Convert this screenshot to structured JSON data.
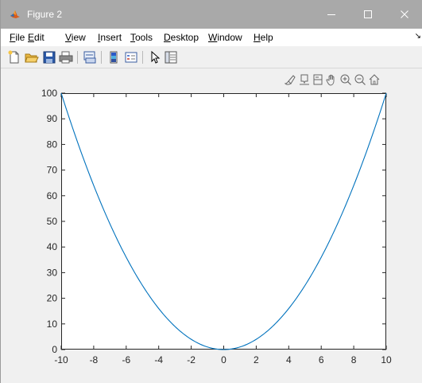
{
  "window": {
    "title": "Figure 2",
    "controls": {
      "minimize": "minimize-icon",
      "maximize": "maximize-icon",
      "close": "close-icon"
    }
  },
  "menu": {
    "items": [
      {
        "label": "File",
        "key": "F",
        "rest": "ile"
      },
      {
        "label": "Edit",
        "key": "E",
        "rest": "dit"
      },
      {
        "label": "View",
        "key": "V",
        "rest": "iew"
      },
      {
        "label": "Insert",
        "key": "I",
        "rest": "nsert"
      },
      {
        "label": "Tools",
        "key": "T",
        "rest": "ools"
      },
      {
        "label": "Desktop",
        "key": "D",
        "rest": "esktop"
      },
      {
        "label": "Window",
        "key": "W",
        "rest": "indow"
      },
      {
        "label": "Help",
        "key": "H",
        "rest": "elp"
      }
    ]
  },
  "toolbar": {
    "buttons": [
      {
        "name": "new-figure-icon"
      },
      {
        "name": "open-file-icon"
      },
      {
        "name": "save-icon"
      },
      {
        "name": "print-icon"
      },
      {
        "name": "link-plot-icon"
      },
      {
        "name": "colorbar-icon"
      },
      {
        "name": "legend-icon"
      },
      {
        "name": "edit-plot-icon"
      },
      {
        "name": "property-inspector-icon"
      }
    ]
  },
  "axes_toolbar": {
    "buttons": [
      {
        "name": "brush-icon"
      },
      {
        "name": "data-tips-icon"
      },
      {
        "name": "rotate-icon"
      },
      {
        "name": "pan-icon"
      },
      {
        "name": "zoom-in-icon"
      },
      {
        "name": "zoom-out-icon"
      },
      {
        "name": "restore-view-icon"
      }
    ]
  },
  "colors": {
    "line": "#0072BD",
    "titlebar": "#a9a9a9",
    "axes_bg": "#ffffff",
    "figure_bg": "#f0f0f0"
  },
  "chart_data": {
    "type": "line",
    "title": "",
    "xlabel": "",
    "ylabel": "",
    "xlim": [
      -10,
      10
    ],
    "ylim": [
      0,
      100
    ],
    "xticks": [
      -10,
      -8,
      -6,
      -4,
      -2,
      0,
      2,
      4,
      6,
      8,
      10
    ],
    "yticks": [
      0,
      10,
      20,
      30,
      40,
      50,
      60,
      70,
      80,
      90,
      100
    ],
    "xtick_labels": [
      "-10",
      "-8",
      "-6",
      "-4",
      "-2",
      "0",
      "2",
      "4",
      "6",
      "8",
      "10"
    ],
    "ytick_labels": [
      "0",
      "10",
      "20",
      "30",
      "40",
      "50",
      "60",
      "70",
      "80",
      "90",
      "100"
    ],
    "grid": false,
    "series": [
      {
        "x": [
          -10,
          -9,
          -8,
          -7,
          -6,
          -5,
          -4,
          -3,
          -2,
          -1,
          0,
          1,
          2,
          3,
          4,
          5,
          6,
          7,
          8,
          9,
          10
        ],
        "y": [
          100,
          81,
          64,
          49,
          36,
          25,
          16,
          9,
          4,
          1,
          0,
          1,
          4,
          9,
          16,
          25,
          36,
          49,
          64,
          81,
          100
        ]
      }
    ]
  }
}
